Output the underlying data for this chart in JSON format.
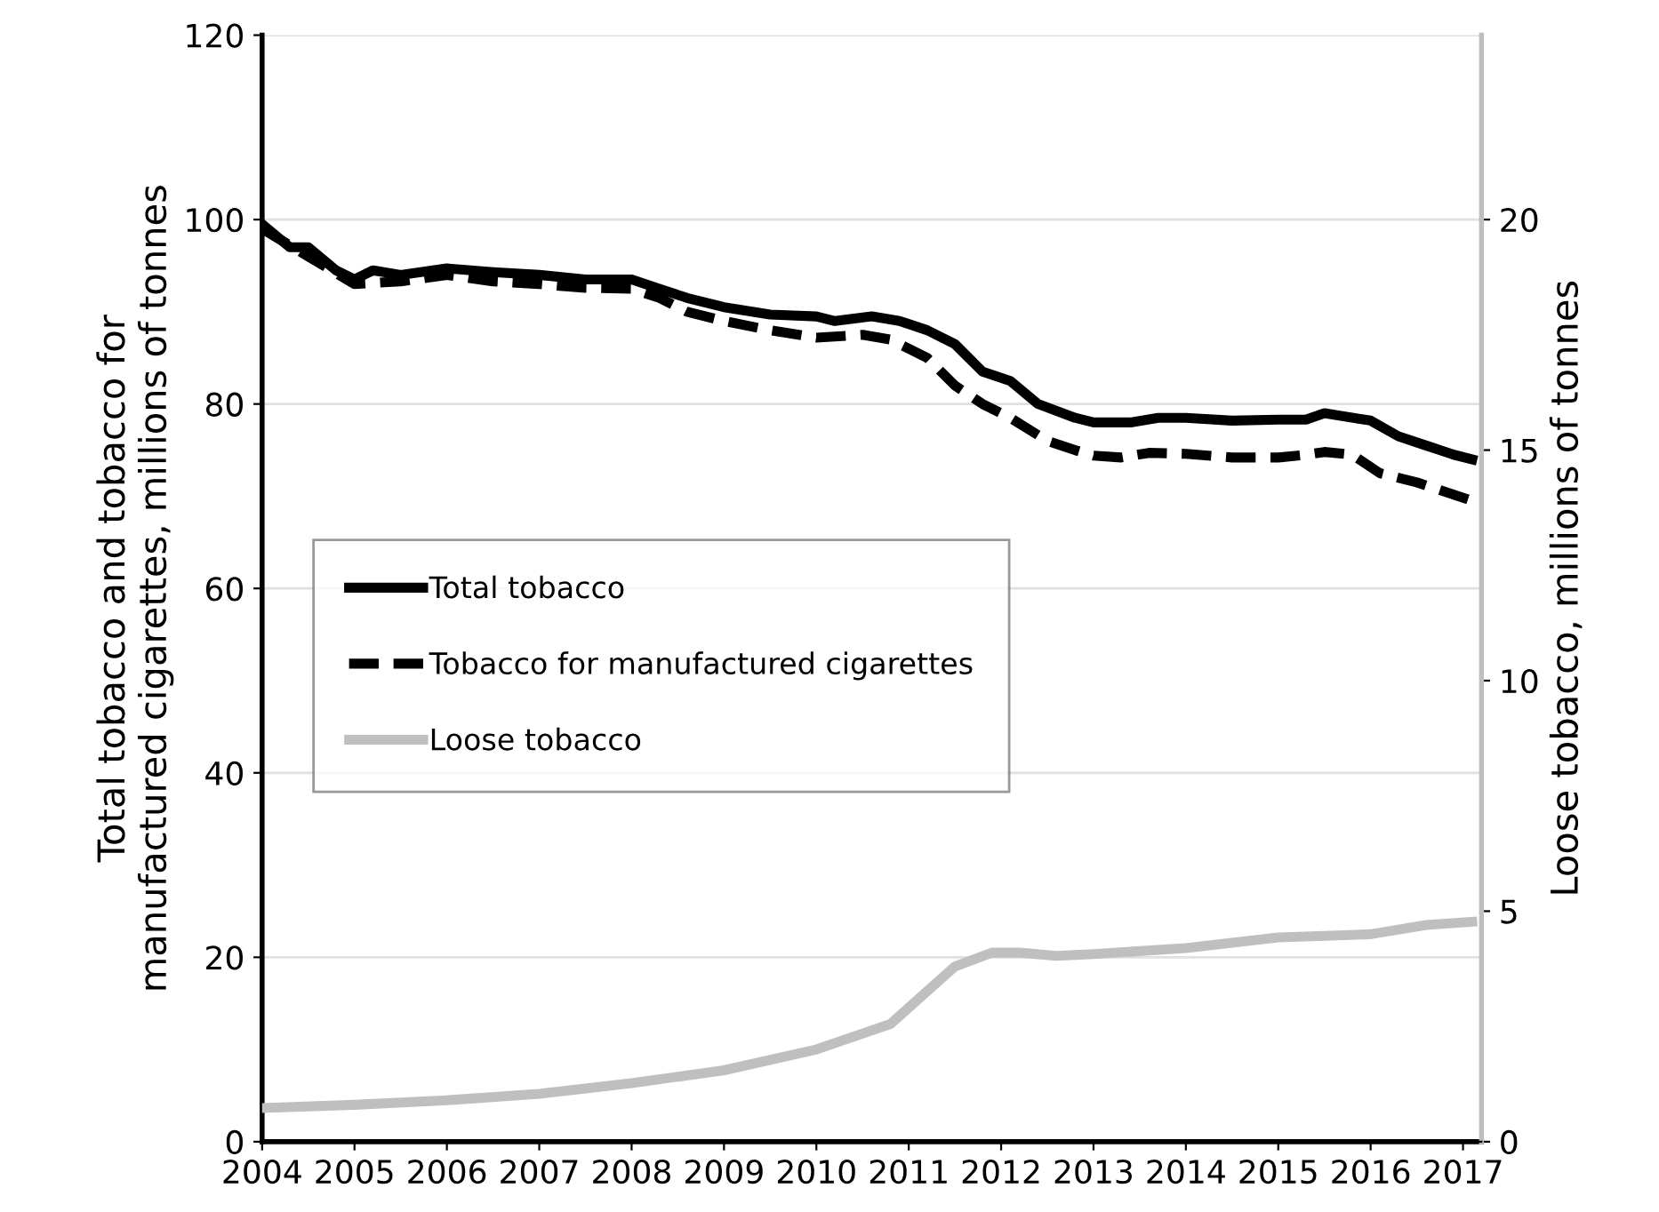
{
  "chart_data": {
    "type": "line",
    "ylabel": "Total tobacco and tobacco for\nmanufactured cigarettes, millions of tonnes",
    "y2label": "Loose tobacco, millions of tonnes",
    "xlim": [
      2004,
      2017.2
    ],
    "xticks": [
      2004,
      2005,
      2006,
      2007,
      2008,
      2009,
      2010,
      2011,
      2012,
      2013,
      2014,
      2015,
      2016,
      2017
    ],
    "ylim": [
      0,
      120
    ],
    "yticks": [
      0,
      20,
      40,
      60,
      80,
      100,
      120
    ],
    "y2lim": [
      0,
      24
    ],
    "y2ticks": [
      0,
      5,
      10,
      15,
      20
    ],
    "grid": "y",
    "legend": "left",
    "series": [
      {
        "name": "Total tobacco",
        "color": "#000000",
        "line_style": "solid",
        "x": [
          2004,
          2004.3,
          2004.5,
          2004.8,
          2005,
          2005.2,
          2005.5,
          2006,
          2006.5,
          2007,
          2007.5,
          2008,
          2008.3,
          2008.6,
          2009,
          2009.5,
          2010,
          2010.2,
          2010.6,
          2010.9,
          2011.2,
          2011.5,
          2011.8,
          2012.1,
          2012.4,
          2012.8,
          2013,
          2013.4,
          2013.7,
          2014,
          2014.5,
          2015,
          2015.3,
          2015.5,
          2016,
          2016.3,
          2016.6,
          2016.9,
          2017.1
        ],
        "values": [
          99.5,
          97,
          97,
          94.5,
          93.5,
          94.5,
          94,
          94.7,
          94.3,
          94,
          93.5,
          93.5,
          92.5,
          91.5,
          90.5,
          89.7,
          89.5,
          89,
          89.5,
          89,
          88,
          86.5,
          83.5,
          82.5,
          80,
          78.5,
          78,
          78,
          78.5,
          78.5,
          78.2,
          78.3,
          78.3,
          79,
          78.2,
          76.5,
          75.5,
          74.5,
          74
        ]
      },
      {
        "name": "Tobacco for manufactured cigarettes",
        "color": "#000000",
        "line_style": "dashed",
        "x": [
          2004,
          2004.5,
          2005,
          2005.5,
          2006,
          2006.5,
          2007,
          2007.5,
          2008,
          2008.3,
          2008.6,
          2009,
          2009.5,
          2010,
          2010.5,
          2010.8,
          2011.2,
          2011.5,
          2011.8,
          2012.1,
          2012.5,
          2012.8,
          2013,
          2013.3,
          2013.6,
          2014,
          2014.5,
          2015,
          2015.3,
          2015.5,
          2015.8,
          2016.1,
          2016.5,
          2016.8,
          2017.1
        ],
        "values": [
          99,
          96,
          93,
          93.3,
          94,
          93.3,
          93,
          92.6,
          92.5,
          91.5,
          90,
          89,
          88,
          87.2,
          87.5,
          87,
          85,
          82,
          80,
          78.5,
          76,
          75,
          74.4,
          74.2,
          74.7,
          74.6,
          74.2,
          74.2,
          74.5,
          74.8,
          74.5,
          72.5,
          71.5,
          70.5,
          69.5
        ]
      },
      {
        "name": "Loose tobacco",
        "color": "#bfbfbf",
        "line_style": "solid",
        "axis": "y2",
        "x": [
          2004,
          2005,
          2006,
          2007,
          2008,
          2009,
          2010,
          2010.8,
          2011.5,
          2011.9,
          2012.2,
          2012.6,
          2013,
          2014,
          2015,
          2016,
          2016.6,
          2017.1
        ],
        "values": [
          0.73,
          0.8,
          0.9,
          1.04,
          1.27,
          1.55,
          2.0,
          2.55,
          3.8,
          4.1,
          4.1,
          4.03,
          4.07,
          4.2,
          4.43,
          4.5,
          4.7,
          4.77
        ]
      }
    ]
  }
}
